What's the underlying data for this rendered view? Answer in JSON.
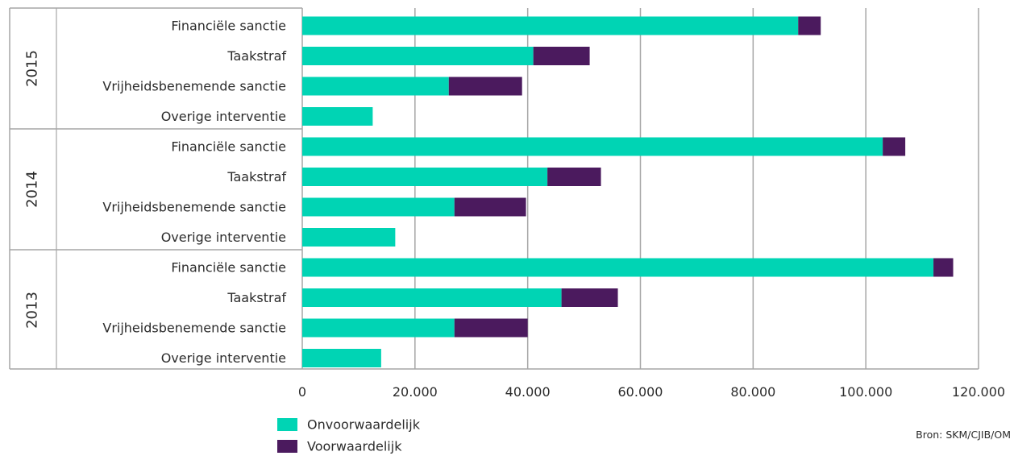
{
  "chart_data": {
    "type": "bar",
    "orientation": "horizontal",
    "stacked": true,
    "groups": [
      {
        "year": "2015",
        "categories": [
          "Financiële sanctie",
          "Taakstraf",
          "Vrijheidsbenemende sanctie",
          "Overige interventie"
        ],
        "onvoorwaardelijk": [
          88000,
          41000,
          26000,
          12500
        ],
        "voorwaardelijk": [
          4000,
          10000,
          13000,
          0
        ]
      },
      {
        "year": "2014",
        "categories": [
          "Financiële sanctie",
          "Taakstraf",
          "Vrijheidsbenemende sanctie",
          "Overige interventie"
        ],
        "onvoorwaardelijk": [
          103000,
          43500,
          27000,
          16500
        ],
        "voorwaardelijk": [
          4000,
          9500,
          12700,
          0
        ]
      },
      {
        "year": "2013",
        "categories": [
          "Financiële sanctie",
          "Taakstraf",
          "Vrijheidsbenemende sanctie",
          "Overige interventie"
        ],
        "onvoorwaardelijk": [
          112000,
          46000,
          27000,
          14000
        ],
        "voorwaardelijk": [
          3500,
          10000,
          13000,
          0
        ]
      }
    ],
    "series": [
      {
        "name": "Onvoorwaardelijk",
        "key": "onvoorwaardelijk",
        "color": "#00d4b4"
      },
      {
        "name": "Voorwaardelijk",
        "key": "voorwaardelijk",
        "color": "#4b1a5e"
      }
    ],
    "xlim": [
      0,
      120000
    ],
    "xticks": [
      0,
      20000,
      40000,
      60000,
      80000,
      100000,
      120000
    ],
    "xtick_labels": [
      "0",
      "20.000",
      "40.000",
      "60.000",
      "80.000",
      "100.000",
      "120.000"
    ],
    "grid": true,
    "legend_position": "bottom-left",
    "source": "Bron: SKM/CJIB/OM"
  }
}
